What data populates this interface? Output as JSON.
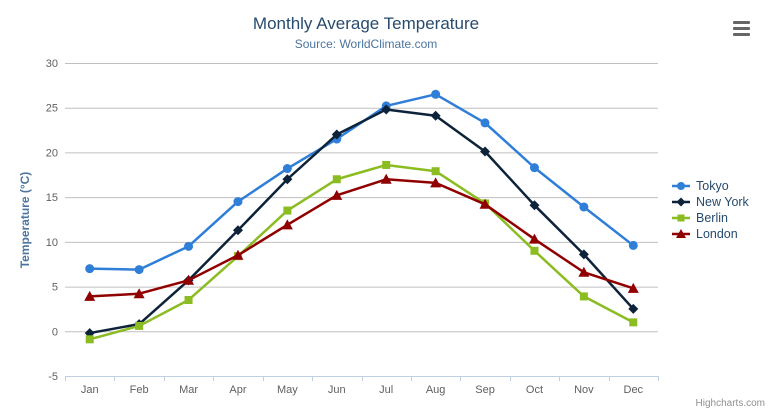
{
  "header": {
    "title": "Monthly Average Temperature",
    "subtitle": "Source: WorldClimate.com"
  },
  "credits": "Highcharts.com",
  "menu_icon": "hamburger-export-menu",
  "colors": {
    "title": "#274b6d",
    "subtitle": "#4d759e",
    "axis_label": "#606060",
    "axis_title": "#4d759e",
    "legend_text": "#274b6d",
    "gridline": "#c0c0c0",
    "axis_line": "#c0d0e0",
    "credits": "#909090"
  },
  "chart_data": {
    "type": "line",
    "title": "Monthly Average Temperature",
    "subtitle": "Source: WorldClimate.com",
    "categories": [
      "Jan",
      "Feb",
      "Mar",
      "Apr",
      "May",
      "Jun",
      "Jul",
      "Aug",
      "Sep",
      "Oct",
      "Nov",
      "Dec"
    ],
    "xlabel": "",
    "ylabel": "Temperature (°C)",
    "ylim": [
      -5,
      30
    ],
    "ytick_step": 5,
    "yticks": [
      -5,
      0,
      5,
      10,
      15,
      20,
      25,
      30
    ],
    "grid": true,
    "legend_position": "right",
    "series": [
      {
        "name": "Tokyo",
        "color": "#2f7ed8",
        "marker": "circle",
        "values": [
          7.0,
          6.9,
          9.5,
          14.5,
          18.2,
          21.5,
          25.2,
          26.5,
          23.3,
          18.3,
          13.9,
          9.6
        ]
      },
      {
        "name": "New York",
        "color": "#0d233a",
        "marker": "diamond",
        "values": [
          -0.2,
          0.8,
          5.7,
          11.3,
          17.0,
          22.0,
          24.8,
          24.1,
          20.1,
          14.1,
          8.6,
          2.5
        ]
      },
      {
        "name": "Berlin",
        "color": "#8bbc21",
        "marker": "square",
        "values": [
          -0.9,
          0.6,
          3.5,
          8.4,
          13.5,
          17.0,
          18.6,
          17.9,
          14.3,
          9.0,
          3.9,
          1.0
        ]
      },
      {
        "name": "London",
        "color": "#910000",
        "marker": "triangle",
        "values": [
          3.9,
          4.2,
          5.7,
          8.5,
          11.9,
          15.2,
          17.0,
          16.6,
          14.2,
          10.3,
          6.6,
          4.8
        ]
      }
    ]
  }
}
